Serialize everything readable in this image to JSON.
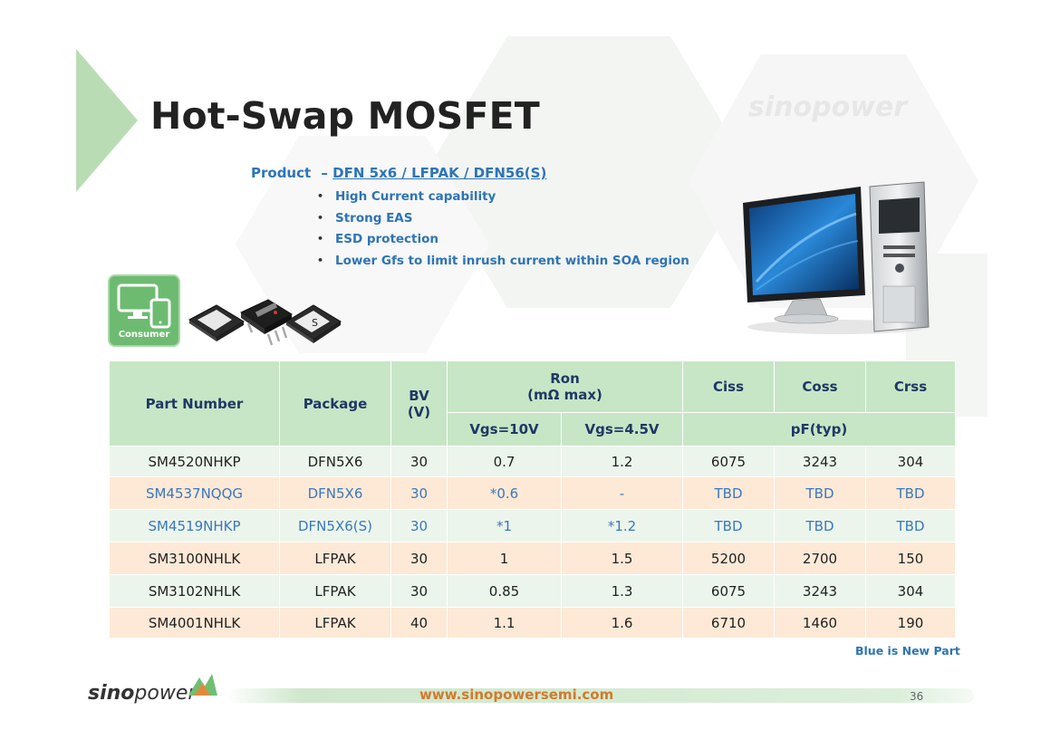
{
  "title": "Hot-Swap MOSFET",
  "product": {
    "label": "Product",
    "dash": "–",
    "packages": "DFN 5x6 / LFPAK / DFN56(S)",
    "bullets": [
      "High Current capability",
      "Strong EAS",
      "ESD protection",
      "Lower Gfs to limit inrush current within SOA region"
    ]
  },
  "brand_watermark": "sinopower",
  "consumer_badge": {
    "label": "Consumer",
    "icon": "monitor-tablet-icon"
  },
  "chip_labels": {
    "s_mark": "S"
  },
  "table": {
    "headers": {
      "part_number": "Part Number",
      "package": "Package",
      "bv": "BV",
      "bv_unit": "(V)",
      "ron": "Ron",
      "ron_unit": "(mΩ max)",
      "ciss": "Ciss",
      "coss": "Coss",
      "crss": "Crss",
      "vgs10": "Vgs=10V",
      "vgs45": "Vgs=4.5V",
      "pf": "pF(typ)"
    },
    "rows": [
      {
        "part": "SM4520NHKP",
        "package": "DFN5X6",
        "bv": "30",
        "ron10": "0.7",
        "ron45": "1.2",
        "ciss": "6075",
        "coss": "3243",
        "crss": "304"
      },
      {
        "part": "SM4537NQQG",
        "package": "DFN5X6",
        "bv": "30",
        "ron10": "*0.6",
        "ron45": "-",
        "ciss": "TBD",
        "coss": "TBD",
        "crss": "TBD"
      },
      {
        "part": "SM4519NHKP",
        "package": "DFN5X6(S)",
        "bv": "30",
        "ron10": "*1",
        "ron45": "*1.2",
        "ciss": "TBD",
        "coss": "TBD",
        "crss": "TBD"
      },
      {
        "part": "SM3100NHLK",
        "package": "LFPAK",
        "bv": "30",
        "ron10": "1",
        "ron45": "1.5",
        "ciss": "5200",
        "coss": "2700",
        "crss": "150"
      },
      {
        "part": "SM3102NHLK",
        "package": "LFPAK",
        "bv": "30",
        "ron10": "0.85",
        "ron45": "1.3",
        "ciss": "6075",
        "coss": "3243",
        "crss": "304"
      },
      {
        "part": "SM4001NHLK",
        "package": "LFPAK",
        "bv": "40",
        "ron10": "1.1",
        "ron45": "1.6",
        "ciss": "6710",
        "coss": "1460",
        "crss": "190"
      }
    ]
  },
  "note": "Blue is New Part",
  "footer": {
    "brand_bold": "sino",
    "brand_rest": "power",
    "url": "www.sinopowersemi.com",
    "page": "36"
  },
  "colors": {
    "accent_green": "#c7e6c6",
    "new_part_blue": "#3a78bd",
    "row_tan": "#fde9d6",
    "url_orange": "#d37a2a"
  }
}
